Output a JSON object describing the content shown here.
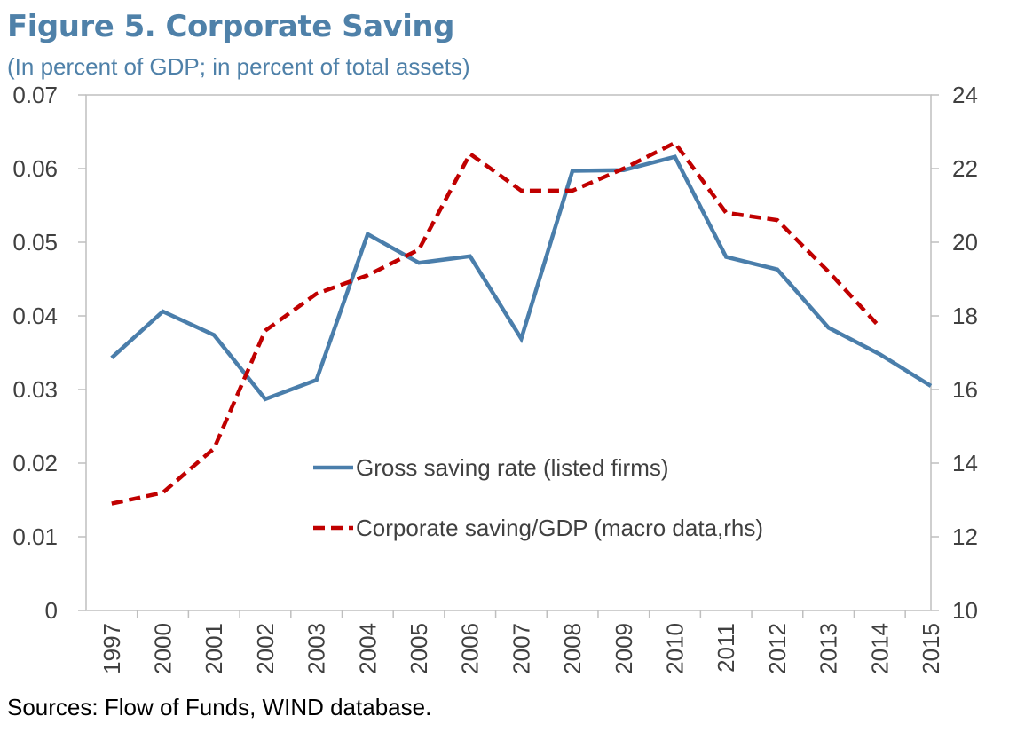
{
  "figure": {
    "title": "Figure 5. Corporate Saving",
    "subtitle": "(In percent of GDP; in percent of total assets)",
    "source": "Sources: Flow of Funds, WIND database."
  },
  "chart_data": {
    "type": "line",
    "categories": [
      "1997",
      "2000",
      "2001",
      "2002",
      "2003",
      "2004",
      "2005",
      "2006",
      "2007",
      "2008",
      "2009",
      "2010",
      "2011",
      "2012",
      "2013",
      "2014",
      "2015"
    ],
    "series": [
      {
        "name": "Gross saving rate (listed firms)",
        "axis": "left",
        "style": "solid",
        "color": "#4a7eab",
        "values": [
          0.0343,
          0.0406,
          0.0374,
          0.0287,
          0.0313,
          0.0511,
          0.0472,
          0.0481,
          0.0369,
          0.0597,
          0.0598,
          0.0616,
          0.048,
          0.0463,
          0.0384,
          0.0348,
          0.0305
        ]
      },
      {
        "name": "Corporate saving/GDP (macro data,rhs)",
        "axis": "right",
        "style": "dashed",
        "color": "#c00000",
        "values": [
          12.9,
          13.2,
          14.4,
          17.6,
          18.6,
          19.1,
          19.8,
          22.4,
          21.4,
          21.4,
          22.0,
          22.7,
          20.8,
          20.6,
          19.2,
          17.7,
          null
        ]
      }
    ],
    "y_left": {
      "min": 0,
      "max": 0.07,
      "ticks": [
        0,
        0.01,
        0.02,
        0.03,
        0.04,
        0.05,
        0.06,
        0.07
      ],
      "tick_labels": [
        "0",
        "0.01",
        "0.02",
        "0.03",
        "0.04",
        "0.05",
        "0.06",
        "0.07"
      ]
    },
    "y_right": {
      "min": 10,
      "max": 24,
      "ticks": [
        10,
        12,
        14,
        16,
        18,
        20,
        22,
        24
      ],
      "tick_labels": [
        "10",
        "12",
        "14",
        "16",
        "18",
        "20",
        "22",
        "24"
      ]
    },
    "grid": false,
    "legend": {
      "placement": "center",
      "entries": [
        "Gross saving rate (listed firms)",
        "Corporate saving/GDP (macro data,rhs)"
      ]
    }
  }
}
